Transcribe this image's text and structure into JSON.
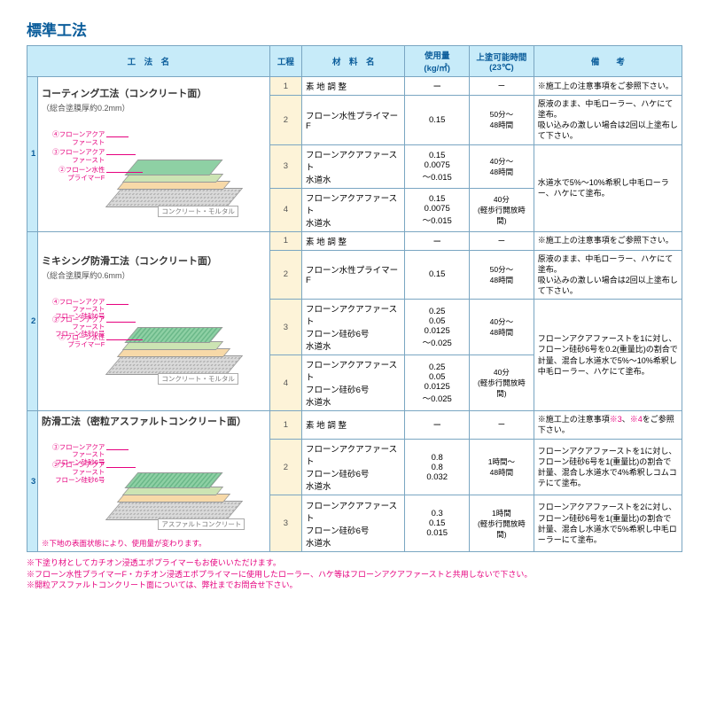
{
  "title": "標準工法",
  "headers": {
    "method": "工　法　名",
    "step": "工程",
    "material": "材　料　名",
    "amount": "使用量\n(kg/㎡)",
    "time": "上塗可能時間\n(23℃)",
    "remarks": "備　　考"
  },
  "colors": {
    "header_bg": "#c7ebf9",
    "header_text": "#0b5d9b",
    "border": "#7aa6c2",
    "step_bg": "#fdf3d8",
    "accent": "#e6007e",
    "diag_top": "#8ed0a4",
    "diag_primer1": "#cce4b3",
    "diag_primer2": "#f7d9a8",
    "diag_base": "#d9d9d9"
  },
  "groups": [
    {
      "num": "1",
      "method_name": "コーティング工法（コンクリート面）",
      "method_sub": "（総合塗膜厚約0.2mm）",
      "diagram": {
        "labels": [
          {
            "n": "④",
            "t": "フローンアクアファースト"
          },
          {
            "n": "③",
            "t": "フローンアクアファースト"
          },
          {
            "n": "②",
            "t": "フローン水性\nプライマーF"
          }
        ],
        "base": "コンクリート・モルタル",
        "textured": false
      },
      "red_note": "",
      "rows": [
        {
          "step": "1",
          "material": "素 地 調 整",
          "amount": "ー",
          "time": "ー",
          "remarks": "※施工上の注意事項をご参照下さい。",
          "rowspan_remarks": 1
        },
        {
          "step": "2",
          "material": "フローン水性プライマーF",
          "amount": "0.15",
          "time": "50分～\n48時間",
          "remarks": "原液のまま、中毛ローラー、ハケにて塗布。\n吸い込みの激しい場合は2回以上塗布して下さい。",
          "rowspan_remarks": 1
        },
        {
          "step": "3",
          "material": "フローンアクアファースト\n水道水",
          "amount": "0.15\n0.0075\n～0.015",
          "time": "40分～\n48時間",
          "remarks": "水道水で5%～10%希釈し中毛ローラー、ハケにて塗布。",
          "rowspan_remarks": 2
        },
        {
          "step": "4",
          "material": "フローンアクアファースト\n水道水",
          "amount": "0.15\n0.0075\n～0.015",
          "time": "40分\n(軽歩行開放時間)",
          "remarks": ""
        }
      ]
    },
    {
      "num": "2",
      "method_name": "ミキシング防滑工法（コンクリート面）",
      "method_sub": "（総合塗膜厚約0.6mm）",
      "diagram": {
        "labels": [
          {
            "n": "④",
            "t": "フローンアクアファースト\nフローン硅砂6号"
          },
          {
            "n": "③",
            "t": "フローンアクアファースト\nフローン硅砂6号"
          },
          {
            "n": "②",
            "t": "フローン水性\nプライマーF"
          }
        ],
        "base": "コンクリート・モルタル",
        "textured": true
      },
      "red_note": "",
      "rows": [
        {
          "step": "1",
          "material": "素 地 調 整",
          "amount": "ー",
          "time": "ー",
          "remarks": "※施工上の注意事項をご参照下さい。",
          "rowspan_remarks": 1
        },
        {
          "step": "2",
          "material": "フローン水性プライマーF",
          "amount": "0.15",
          "time": "50分～\n48時間",
          "remarks": "原液のまま、中毛ローラー、ハケにて塗布。\n吸い込みの激しい場合は2回以上塗布して下さい。",
          "rowspan_remarks": 1
        },
        {
          "step": "3",
          "material": "フローンアクアファースト\nフローン硅砂6号\n水道水",
          "amount": "0.25\n0.05\n0.0125\n～0.025",
          "time": "40分～\n48時間",
          "remarks": "フローンアクアファーストを1に対し、フローン硅砂6号を0.2(重量比)の割合で計量、混合し水道水で5%～10%希釈し中毛ローラー、ハケにて塗布。",
          "rowspan_remarks": 2
        },
        {
          "step": "4",
          "material": "フローンアクアファースト\nフローン硅砂6号\n水道水",
          "amount": "0.25\n0.05\n0.0125\n～0.025",
          "time": "40分\n(軽歩行開放時間)",
          "remarks": ""
        }
      ]
    },
    {
      "num": "3",
      "method_name": "防滑工法（密粒アスファルトコンクリート面）",
      "method_sub": "",
      "diagram": {
        "labels": [
          {
            "n": "③",
            "t": "フローンアクアファースト\nフローン硅砂6号"
          },
          {
            "n": "②",
            "t": "フローンアクアファースト\nフローン硅砂6号"
          }
        ],
        "base": "アスファルトコンクリート",
        "textured": true
      },
      "red_note": "※下地の表面状態により、使用量が変わります。",
      "rows": [
        {
          "step": "1",
          "material": "素 地 調 整",
          "amount": "ー",
          "time": "ー",
          "remarks": "※施工上の注意事項※3、※4をご参照下さい。",
          "rowspan_remarks": 1,
          "remarks_pink": true
        },
        {
          "step": "2",
          "material": "フローンアクアファースト\nフローン硅砂6号\n水道水",
          "amount": "0.8\n0.8\n0.032",
          "time": "1時間～\n48時間",
          "remarks": "フローンアクアファーストを1に対し、フローン硅砂6号を1(重量比)の割合で計量、混合し水道水で4%希釈しコムコテにて塗布。",
          "rowspan_remarks": 1
        },
        {
          "step": "3",
          "material": "フローンアクアファースト\nフローン硅砂6号\n水道水",
          "amount": "0.3\n0.15\n0.015",
          "time": "1時間\n(軽歩行開放時間)",
          "remarks": "フローンアクアファーストを2に対し、フローン硅砂6号を1(重量比)の割合で計量、混合し水道水で5%希釈し中毛ローラーにて塗布。",
          "rowspan_remarks": 1
        }
      ]
    }
  ],
  "footnotes": [
    "※下塗り材としてカチオン浸透エポプライマーもお使いいただけます。",
    "※フローン水性プライマーF・カチオン浸透エポプライマーに使用したローラー、ハケ等はフローンアクアファーストと共用しないで下さい。",
    "※開粒アスファルトコンクリート面については、弊社までお問合せ下さい。"
  ]
}
